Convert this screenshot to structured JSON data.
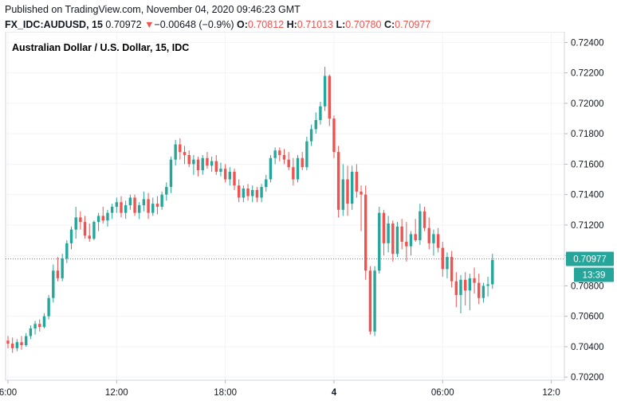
{
  "header": {
    "published": "Published on TradingView.com, November 04, 2020 09:46:23 GMT",
    "symbol": "FX_IDC:AUDUSD, 15",
    "last": "0.70972",
    "change_arrow": "▼",
    "change": "−0.00648 (−0.9%)",
    "o_label": "O:",
    "o_value": "0.70812",
    "h_label": "H:",
    "h_value": "0.71013",
    "l_label": "L:",
    "l_value": "0.70780",
    "c_label": "C:",
    "c_value": "0.70977"
  },
  "chart_data": {
    "type": "candlestick",
    "title": "Australian Dollar / U.S. Dollar, 15, IDC",
    "ylim": [
      0.7018,
      0.7247
    ],
    "y_ticks": [
      "0.72400",
      "0.72200",
      "0.72000",
      "0.71800",
      "0.71600",
      "0.71400",
      "0.71200",
      "0.71000",
      "0.70800",
      "0.70600",
      "0.70400",
      "0.70200"
    ],
    "x_ticks": [
      {
        "label": "6:00",
        "pos": 0,
        "bold": false
      },
      {
        "label": "12:00",
        "pos": 24,
        "bold": false
      },
      {
        "label": "18:00",
        "pos": 48,
        "bold": false
      },
      {
        "label": "4",
        "pos": 72,
        "bold": true
      },
      {
        "label": "06:00",
        "pos": 96,
        "bold": false
      },
      {
        "label": "12:0",
        "pos": 120,
        "bold": false
      }
    ],
    "last_price": "0.70977",
    "last_price_value": 0.70977,
    "countdown": "13:39",
    "up_color": "#26a69a",
    "down_color": "#ef5350",
    "candles": [
      [
        0.7044,
        0.7047,
        0.7039,
        0.7042
      ],
      [
        0.7042,
        0.7046,
        0.7036,
        0.7039
      ],
      [
        0.7039,
        0.7045,
        0.7037,
        0.7043
      ],
      [
        0.7043,
        0.7047,
        0.7038,
        0.7041
      ],
      [
        0.7041,
        0.7049,
        0.704,
        0.7047
      ],
      [
        0.7047,
        0.7054,
        0.7045,
        0.7052
      ],
      [
        0.7052,
        0.7057,
        0.7048,
        0.7055
      ],
      [
        0.7055,
        0.7058,
        0.705,
        0.7053
      ],
      [
        0.7053,
        0.7062,
        0.7052,
        0.706
      ],
      [
        0.706,
        0.7074,
        0.7058,
        0.7072
      ],
      [
        0.7072,
        0.7094,
        0.7069,
        0.709
      ],
      [
        0.709,
        0.7099,
        0.7083,
        0.7085
      ],
      [
        0.7085,
        0.7101,
        0.7083,
        0.7098
      ],
      [
        0.7098,
        0.711,
        0.7095,
        0.7108
      ],
      [
        0.7108,
        0.7119,
        0.7104,
        0.7117
      ],
      [
        0.7117,
        0.7132,
        0.7111,
        0.7125
      ],
      [
        0.7125,
        0.7129,
        0.7117,
        0.7122
      ],
      [
        0.7122,
        0.7126,
        0.7111,
        0.7113
      ],
      [
        0.7113,
        0.7121,
        0.7109,
        0.7111
      ],
      [
        0.7111,
        0.7123,
        0.711,
        0.7122
      ],
      [
        0.7122,
        0.7128,
        0.7116,
        0.7126
      ],
      [
        0.7126,
        0.7132,
        0.7121,
        0.7123
      ],
      [
        0.7123,
        0.713,
        0.7119,
        0.7128
      ],
      [
        0.7128,
        0.7134,
        0.7124,
        0.7132
      ],
      [
        0.7132,
        0.7138,
        0.7128,
        0.7135
      ],
      [
        0.7135,
        0.7139,
        0.7125,
        0.7128
      ],
      [
        0.7128,
        0.7136,
        0.7124,
        0.7133
      ],
      [
        0.7133,
        0.714,
        0.713,
        0.7138
      ],
      [
        0.7138,
        0.714,
        0.7126,
        0.7128
      ],
      [
        0.7128,
        0.7135,
        0.7124,
        0.7133
      ],
      [
        0.7133,
        0.7142,
        0.7129,
        0.7137
      ],
      [
        0.7137,
        0.7141,
        0.7124,
        0.7128
      ],
      [
        0.7128,
        0.7138,
        0.7126,
        0.7134
      ],
      [
        0.7134,
        0.7139,
        0.7127,
        0.7132
      ],
      [
        0.7132,
        0.7142,
        0.713,
        0.714
      ],
      [
        0.714,
        0.7148,
        0.7136,
        0.7145
      ],
      [
        0.7145,
        0.7165,
        0.7141,
        0.7163
      ],
      [
        0.7163,
        0.7176,
        0.7159,
        0.7173
      ],
      [
        0.7173,
        0.7177,
        0.7163,
        0.7168
      ],
      [
        0.7168,
        0.7172,
        0.716,
        0.7166
      ],
      [
        0.7166,
        0.7169,
        0.7158,
        0.716
      ],
      [
        0.716,
        0.7166,
        0.7153,
        0.7163
      ],
      [
        0.7163,
        0.7165,
        0.7152,
        0.7156
      ],
      [
        0.7156,
        0.7166,
        0.7153,
        0.7164
      ],
      [
        0.7164,
        0.7168,
        0.7157,
        0.7159
      ],
      [
        0.7159,
        0.7165,
        0.7155,
        0.7162
      ],
      [
        0.7162,
        0.7166,
        0.7153,
        0.7155
      ],
      [
        0.7155,
        0.7161,
        0.7152,
        0.7157
      ],
      [
        0.7157,
        0.716,
        0.7148,
        0.715
      ],
      [
        0.715,
        0.7158,
        0.7146,
        0.7155
      ],
      [
        0.7155,
        0.7157,
        0.7143,
        0.7146
      ],
      [
        0.7146,
        0.715,
        0.7135,
        0.7138
      ],
      [
        0.7138,
        0.7146,
        0.7135,
        0.7144
      ],
      [
        0.7144,
        0.7147,
        0.7136,
        0.7139
      ],
      [
        0.7139,
        0.7146,
        0.7135,
        0.7143
      ],
      [
        0.7143,
        0.7145,
        0.7135,
        0.7138
      ],
      [
        0.7138,
        0.7147,
        0.7135,
        0.7145
      ],
      [
        0.7145,
        0.7153,
        0.7142,
        0.715
      ],
      [
        0.715,
        0.7166,
        0.7148,
        0.7164
      ],
      [
        0.7164,
        0.7171,
        0.716,
        0.7169
      ],
      [
        0.7169,
        0.7171,
        0.7162,
        0.7166
      ],
      [
        0.7166,
        0.717,
        0.716,
        0.7163
      ],
      [
        0.7163,
        0.7168,
        0.7156,
        0.7158
      ],
      [
        0.7158,
        0.7164,
        0.7146,
        0.715
      ],
      [
        0.715,
        0.7166,
        0.7148,
        0.7164
      ],
      [
        0.7164,
        0.7168,
        0.7156,
        0.7158
      ],
      [
        0.7158,
        0.7178,
        0.7156,
        0.7175
      ],
      [
        0.7175,
        0.7186,
        0.7172,
        0.7183
      ],
      [
        0.7183,
        0.7194,
        0.718,
        0.7189
      ],
      [
        0.7189,
        0.7201,
        0.7186,
        0.7198
      ],
      [
        0.7198,
        0.7224,
        0.7195,
        0.7218
      ],
      [
        0.7218,
        0.7219,
        0.7185,
        0.719
      ],
      [
        0.719,
        0.7192,
        0.7164,
        0.7168
      ],
      [
        0.7168,
        0.7172,
        0.7125,
        0.713
      ],
      [
        0.713,
        0.716,
        0.7126,
        0.715
      ],
      [
        0.715,
        0.7159,
        0.7126,
        0.7134
      ],
      [
        0.7134,
        0.7159,
        0.713,
        0.7155
      ],
      [
        0.7155,
        0.716,
        0.7138,
        0.7142
      ],
      [
        0.7142,
        0.7146,
        0.7116,
        0.714
      ],
      [
        0.714,
        0.7146,
        0.7084,
        0.709
      ],
      [
        0.709,
        0.7093,
        0.7048,
        0.705
      ],
      [
        0.705,
        0.7093,
        0.7047,
        0.709
      ],
      [
        0.709,
        0.7132,
        0.7088,
        0.7128
      ],
      [
        0.7128,
        0.713,
        0.71,
        0.7108
      ],
      [
        0.7108,
        0.7126,
        0.7102,
        0.7121
      ],
      [
        0.7121,
        0.7123,
        0.7096,
        0.7101
      ],
      [
        0.7101,
        0.7122,
        0.7099,
        0.7119
      ],
      [
        0.7119,
        0.7124,
        0.7104,
        0.7109
      ],
      [
        0.7109,
        0.7122,
        0.7096,
        0.7106
      ],
      [
        0.7106,
        0.7116,
        0.71,
        0.7114
      ],
      [
        0.7114,
        0.7124,
        0.7109,
        0.711
      ],
      [
        0.711,
        0.7134,
        0.7107,
        0.7129
      ],
      [
        0.7129,
        0.7132,
        0.7116,
        0.7118
      ],
      [
        0.7118,
        0.7125,
        0.7104,
        0.7108
      ],
      [
        0.7108,
        0.7117,
        0.71,
        0.7114
      ],
      [
        0.7114,
        0.7118,
        0.7102,
        0.7105
      ],
      [
        0.7105,
        0.7109,
        0.7086,
        0.7091
      ],
      [
        0.7091,
        0.7102,
        0.7085,
        0.7099
      ],
      [
        0.7099,
        0.7103,
        0.7079,
        0.7083
      ],
      [
        0.7083,
        0.7089,
        0.7066,
        0.7074
      ],
      [
        0.7074,
        0.7087,
        0.7062,
        0.7084
      ],
      [
        0.7084,
        0.7089,
        0.7067,
        0.7077
      ],
      [
        0.7077,
        0.7088,
        0.7064,
        0.7085
      ],
      [
        0.7085,
        0.7092,
        0.7075,
        0.7082
      ],
      [
        0.7082,
        0.7088,
        0.7068,
        0.7072
      ],
      [
        0.7072,
        0.7082,
        0.7069,
        0.708
      ],
      [
        0.708,
        0.7086,
        0.7073,
        0.7081
      ],
      [
        0.7081,
        0.7101,
        0.7078,
        0.7097
      ]
    ]
  }
}
